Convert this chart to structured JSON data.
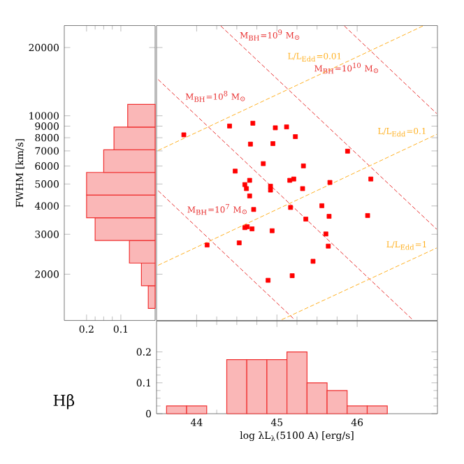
{
  "chart_data": [
    {
      "type": "histogram",
      "orientation": "horizontal",
      "ylabel": "FWHM [km/s]",
      "log": "y",
      "color": "#f03030",
      "bins": [
        1413,
        1778,
        2239,
        2818,
        3548,
        4467,
        5623,
        7079,
        8913,
        11220
      ],
      "values": [
        0.02,
        0.04,
        0.075,
        0.175,
        0.2,
        0.2,
        0.15,
        0.12,
        0.08
      ],
      "xlim": [
        0.265,
        0
      ],
      "xticks": [
        0.2,
        0.1
      ],
      "ylim": [
        1250,
        25000
      ],
      "yticks": [
        2000,
        3000,
        4000,
        5000,
        6000,
        7000,
        8000,
        9000,
        10000,
        20000
      ]
    },
    {
      "type": "scatter",
      "log": "y",
      "tick_labels": false,
      "xlim": [
        43.5,
        47
      ],
      "xticks": [
        44,
        45,
        46
      ],
      "ylim": [
        1250,
        25000
      ],
      "yticks": [
        2000,
        3000,
        4000,
        5000,
        6000,
        7000,
        8000,
        9000,
        10000,
        20000
      ],
      "series": [
        {
          "type": "scatter",
          "color": "#ff0000",
          "marker": "square",
          "x": [
            43.84,
            44.41,
            44.7,
            44.98,
            45.12,
            45.23,
            44.67,
            44.95,
            45.88,
            44.83,
            44.48,
            45.33,
            44.66,
            44.6,
            44.62,
            44.92,
            44.92,
            45.16,
            45.21,
            45.32,
            45.66,
            46.17,
            44.66,
            44.71,
            45.17,
            45.56,
            45.65,
            45.36,
            46.13,
            44.63,
            44.6,
            44.69,
            44.94,
            45.61,
            45.64,
            44.53,
            44.13,
            45.45,
            44.89,
            45.19
          ],
          "values": [
            8240,
            9010,
            9270,
            8850,
            8930,
            8090,
            7500,
            7540,
            6980,
            6150,
            5700,
            6010,
            5190,
            4970,
            4770,
            4890,
            4700,
            5190,
            5260,
            4770,
            5080,
            5260,
            4430,
            3860,
            3940,
            4010,
            3600,
            3500,
            3630,
            3240,
            3210,
            3170,
            3110,
            3010,
            2660,
            2750,
            2690,
            2280,
            1880,
            1970
          ]
        },
        {
          "type": "line",
          "name": "M$_{BH}$=10$^{7}$ M$_{⊙}$",
          "color": "#e83030",
          "line_style": "dashed",
          "x": [
            43.52,
            45.22
          ],
          "values": [
            4670,
            1260
          ]
        },
        {
          "type": "line",
          "name": "M$_{BH}$=10$^{8}$ M$_{⊙}$",
          "color": "#e83030",
          "line_style": "dashed",
          "x": [
            43.52,
            46.69
          ],
          "values": [
            14450,
            1260
          ]
        },
        {
          "type": "line",
          "name": "M$_{BH}$=10$^{9}$ M$_{⊙}$",
          "color": "#e83030",
          "line_style": "dashed",
          "x": [
            44.3,
            46.99
          ],
          "values": [
            24900,
            3160
          ]
        },
        {
          "type": "line",
          "name": "M$_{BH}$=10$^{10}$ M$_{⊙}$",
          "color": "#e83030",
          "line_style": "dashed",
          "x": [
            45.84,
            46.99
          ],
          "values": [
            24900,
            10230
          ]
        },
        {
          "type": "line",
          "name": "L/L$_{Edd}$=0.01",
          "color": "#ffb020",
          "line_style": "dashed",
          "x": [
            43.52,
            46.82
          ],
          "values": [
            7030,
            24900
          ]
        },
        {
          "type": "line",
          "name": "L/L$_{Edd}$=0.1",
          "color": "#ffb020",
          "line_style": "dashed",
          "x": [
            43.52,
            46.99
          ],
          "values": [
            2190,
            8280
          ]
        },
        {
          "type": "line",
          "name": "L/L$_{Edd}$=1",
          "color": "#ffb020",
          "line_style": "dashed",
          "x": [
            45.06,
            46.99
          ],
          "values": [
            1260,
            2610
          ]
        }
      ]
    },
    {
      "type": "histogram",
      "xlabel": "log λL$_{λ}$(5100 A) [erg/s]",
      "color": "#f03030",
      "annotations": [
        "Hβ"
      ],
      "bins": [
        43.625,
        43.875,
        44.125,
        44.375,
        44.625,
        44.875,
        45.125,
        45.375,
        45.625,
        45.875,
        46.125,
        46.375
      ],
      "values": [
        0.025,
        0.025,
        0,
        0.175,
        0.175,
        0.175,
        0.2,
        0.1,
        0.075,
        0.025,
        0.025
      ],
      "xlim": [
        43.5,
        47
      ],
      "xticks": [
        44,
        45,
        46
      ],
      "ylim": [
        0,
        0.3
      ],
      "yticks": [
        0,
        0.1,
        0.2
      ]
    }
  ]
}
